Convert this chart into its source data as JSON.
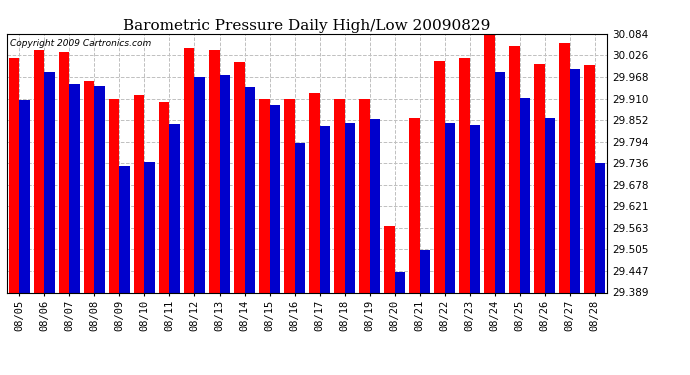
{
  "title": "Barometric Pressure Daily High/Low 20090829",
  "copyright": "Copyright 2009 Cartronics.com",
  "dates": [
    "08/05",
    "08/06",
    "08/07",
    "08/08",
    "08/09",
    "08/10",
    "08/11",
    "08/12",
    "08/13",
    "08/14",
    "08/15",
    "08/16",
    "08/17",
    "08/18",
    "08/19",
    "08/20",
    "08/21",
    "08/22",
    "08/23",
    "08/24",
    "08/25",
    "08/26",
    "08/27",
    "08/28"
  ],
  "highs": [
    30.02,
    30.04,
    30.034,
    29.958,
    29.91,
    29.92,
    29.9,
    30.046,
    30.04,
    30.008,
    29.908,
    29.908,
    29.926,
    29.908,
    29.908,
    29.568,
    29.858,
    30.01,
    30.02,
    30.09,
    30.05,
    30.002,
    30.06,
    30.0
  ],
  "lows": [
    29.905,
    29.98,
    29.95,
    29.944,
    29.73,
    29.74,
    29.842,
    29.968,
    29.972,
    29.942,
    29.892,
    29.79,
    29.835,
    29.844,
    29.856,
    29.444,
    29.502,
    29.844,
    29.84,
    29.982,
    29.912,
    29.858,
    29.99,
    29.738
  ],
  "high_color": "#ff0000",
  "low_color": "#0000cc",
  "background_color": "#ffffff",
  "plot_bg_color": "#ffffff",
  "grid_color": "#c0c0c0",
  "ylim_min": 29.389,
  "ylim_max": 30.084,
  "yticks": [
    29.389,
    29.447,
    29.505,
    29.563,
    29.621,
    29.678,
    29.736,
    29.794,
    29.852,
    29.91,
    29.968,
    30.026,
    30.084
  ],
  "title_fontsize": 11,
  "tick_fontsize": 7.5,
  "bar_width": 0.42
}
